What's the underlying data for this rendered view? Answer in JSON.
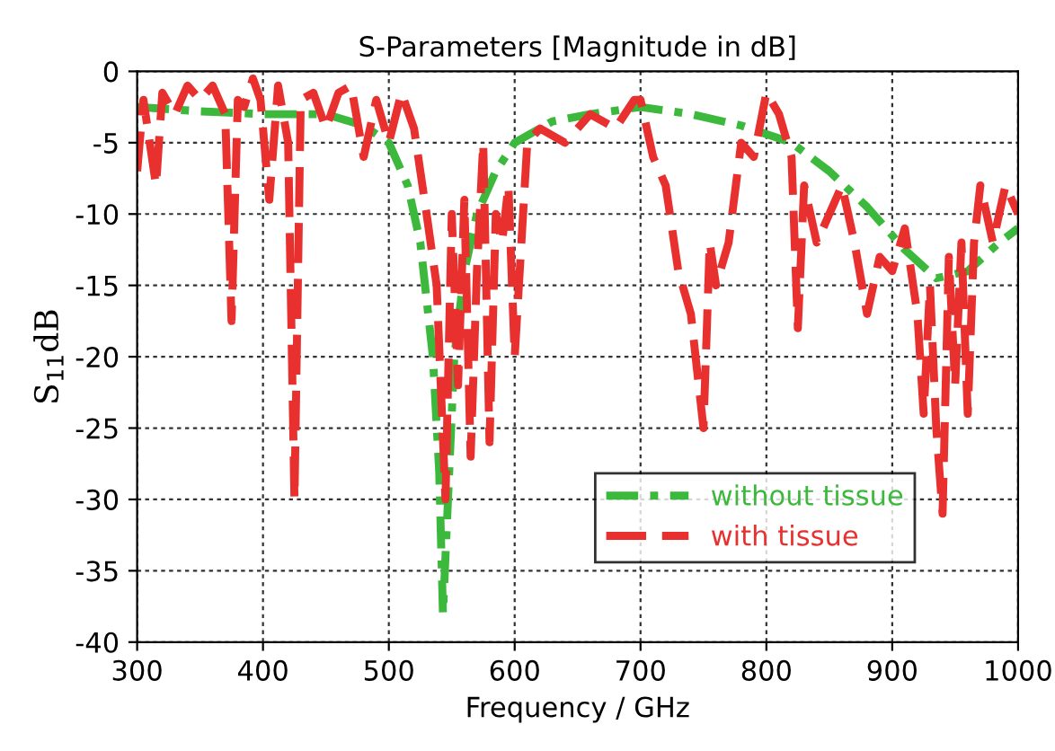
{
  "chart_data": {
    "type": "line",
    "title": "S-Parameters [Magnitude in dB]",
    "xlabel": "Frequency / GHz",
    "ylabel": "S$_{11}$dB",
    "xlim": [
      300,
      1000
    ],
    "ylim": [
      -40,
      0
    ],
    "xticks": [
      300,
      400,
      500,
      600,
      700,
      800,
      900,
      1000
    ],
    "yticks": [
      0,
      -5,
      -10,
      -15,
      -20,
      -25,
      -30,
      -35,
      -40
    ],
    "grid": true,
    "legend": "bottom right",
    "series": [
      {
        "name": "without tissue",
        "color": "#3cb93c",
        "line_style": "dashdot",
        "x": [
          300,
          350,
          400,
          450,
          480,
          500,
          515,
          525,
          535,
          540,
          543,
          547,
          552,
          560,
          570,
          585,
          600,
          630,
          660,
          700,
          740,
          780,
          820,
          850,
          880,
          910,
          935,
          960,
          985,
          1000
        ],
        "values": [
          -2.5,
          -2.8,
          -3,
          -3,
          -3.8,
          -5,
          -8,
          -12,
          -20,
          -28,
          -38,
          -30,
          -20,
          -14,
          -10,
          -7,
          -5,
          -3.5,
          -3,
          -2.5,
          -3,
          -3.8,
          -5,
          -7,
          -9.5,
          -12.5,
          -14.5,
          -14,
          -12,
          -11
        ]
      },
      {
        "name": "with tissue",
        "color": "#e8312f",
        "line_style": "dashed",
        "x": [
          300,
          305,
          310,
          315,
          320,
          330,
          340,
          350,
          360,
          370,
          375,
          380,
          385,
          392,
          398,
          405,
          412,
          420,
          425,
          430,
          440,
          450,
          460,
          470,
          480,
          490,
          500,
          510,
          520,
          530,
          538,
          545,
          550,
          555,
          560,
          565,
          570,
          575,
          580,
          585,
          590,
          595,
          600,
          610,
          620,
          640,
          660,
          680,
          695,
          700,
          710,
          720,
          730,
          740,
          750,
          755,
          760,
          770,
          780,
          790,
          800,
          810,
          820,
          825,
          830,
          840,
          850,
          860,
          870,
          880,
          890,
          900,
          910,
          920,
          925,
          930,
          935,
          940,
          945,
          950,
          955,
          960,
          965,
          970,
          980,
          990,
          1000
        ],
        "values": [
          -7,
          -2,
          -5,
          -8,
          -1.5,
          -3,
          -1,
          -2,
          -1,
          -3,
          -17.5,
          -2,
          -2.5,
          -0.5,
          -2,
          -9,
          -1,
          -5,
          -30,
          -2,
          -1.5,
          -4,
          -1.5,
          -1,
          -6,
          -2,
          -5,
          -1.5,
          -4,
          -10,
          -15,
          -30,
          -10,
          -22,
          -9,
          -27,
          -14,
          -5,
          -26,
          -10,
          -12,
          -8,
          -20,
          -5,
          -4,
          -5,
          -3,
          -4,
          -2,
          -2,
          -6,
          -8,
          -14,
          -17,
          -25,
          -12,
          -15,
          -12,
          -5,
          -6,
          -1.5,
          -3,
          -6,
          -18,
          -8,
          -12,
          -10,
          -8,
          -12,
          -17,
          -13,
          -14,
          -11,
          -17,
          -24,
          -15,
          -25,
          -31,
          -13,
          -22,
          -12,
          -24,
          -12,
          -8,
          -12,
          -8,
          -10
        ]
      }
    ]
  }
}
